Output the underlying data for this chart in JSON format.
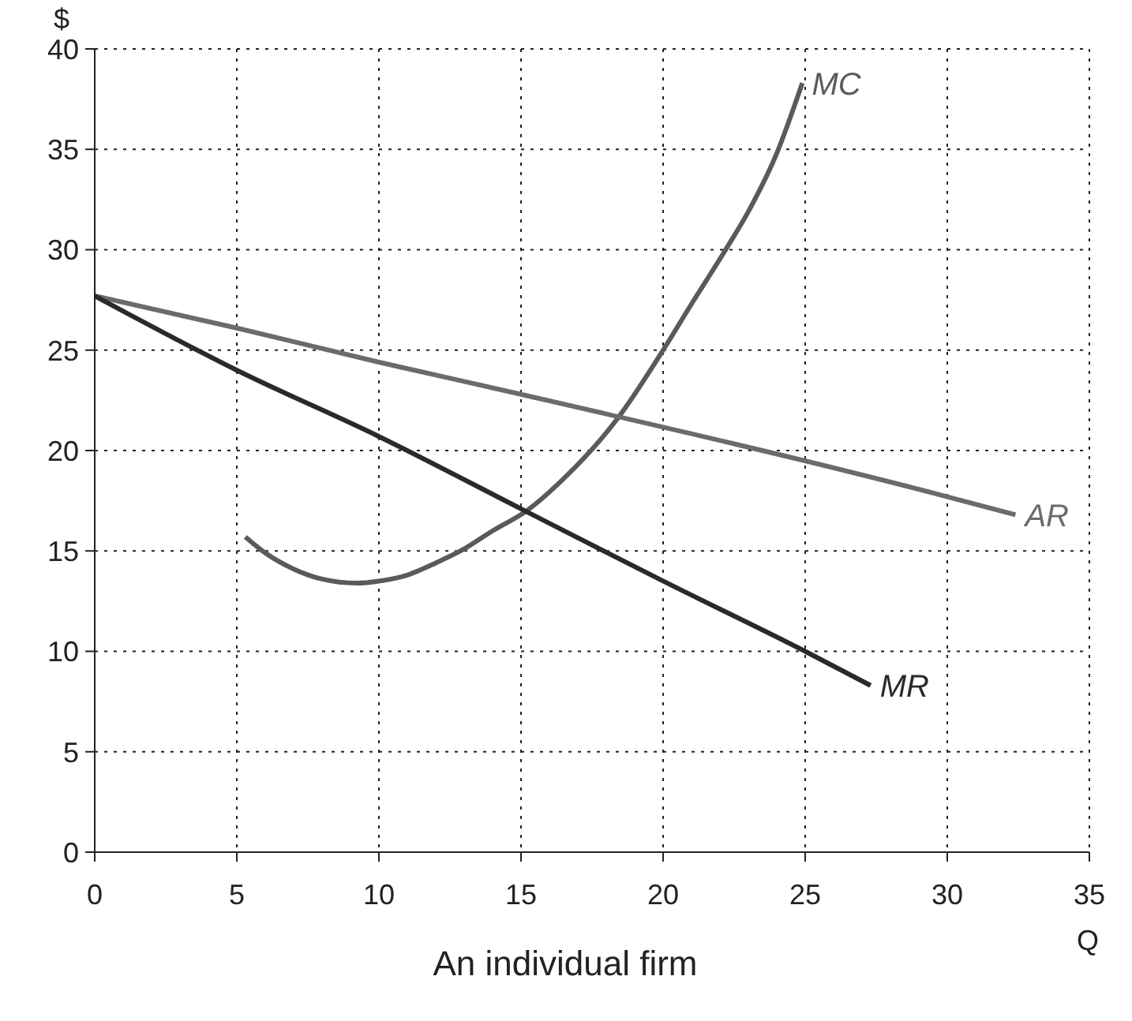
{
  "chart_data": {
    "type": "line",
    "title": "An individual firm",
    "xlabel": "Q",
    "ylabel": "$",
    "xlim": [
      0,
      35
    ],
    "xticks": [
      0,
      5,
      10,
      15,
      20,
      25,
      30,
      35
    ],
    "ylim": [
      0,
      40
    ],
    "yticks": [
      0,
      5,
      10,
      15,
      20,
      25,
      30,
      35,
      40
    ],
    "grid": true,
    "series": [
      {
        "name": "MC",
        "color": "#5a5a5a",
        "x": [
          5.3,
          6,
          7,
          8,
          9.2,
          10,
          11,
          12,
          13,
          14,
          15.2,
          16.5,
          18.4,
          20,
          21,
          22.2,
          23,
          24,
          24.9
        ],
        "values": [
          15.7,
          14.9,
          14.1,
          13.6,
          13.4,
          13.5,
          13.8,
          14.4,
          15.1,
          16,
          17,
          18.6,
          21.6,
          25,
          27.3,
          30,
          31.9,
          34.8,
          38.3
        ]
      },
      {
        "name": "AR",
        "color": "#6b6b6b",
        "x": [
          0,
          5,
          10,
          15,
          30,
          32.4
        ],
        "values": [
          27.7,
          26.1,
          24.4,
          22.8,
          17.7,
          16.8
        ]
      },
      {
        "name": "MR",
        "color": "#2a2a2a",
        "x": [
          0,
          5,
          10,
          15,
          20,
          25,
          27.3
        ],
        "values": [
          27.7,
          24.0,
          20.7,
          17.1,
          13.5,
          10.0,
          8.3
        ]
      }
    ]
  }
}
